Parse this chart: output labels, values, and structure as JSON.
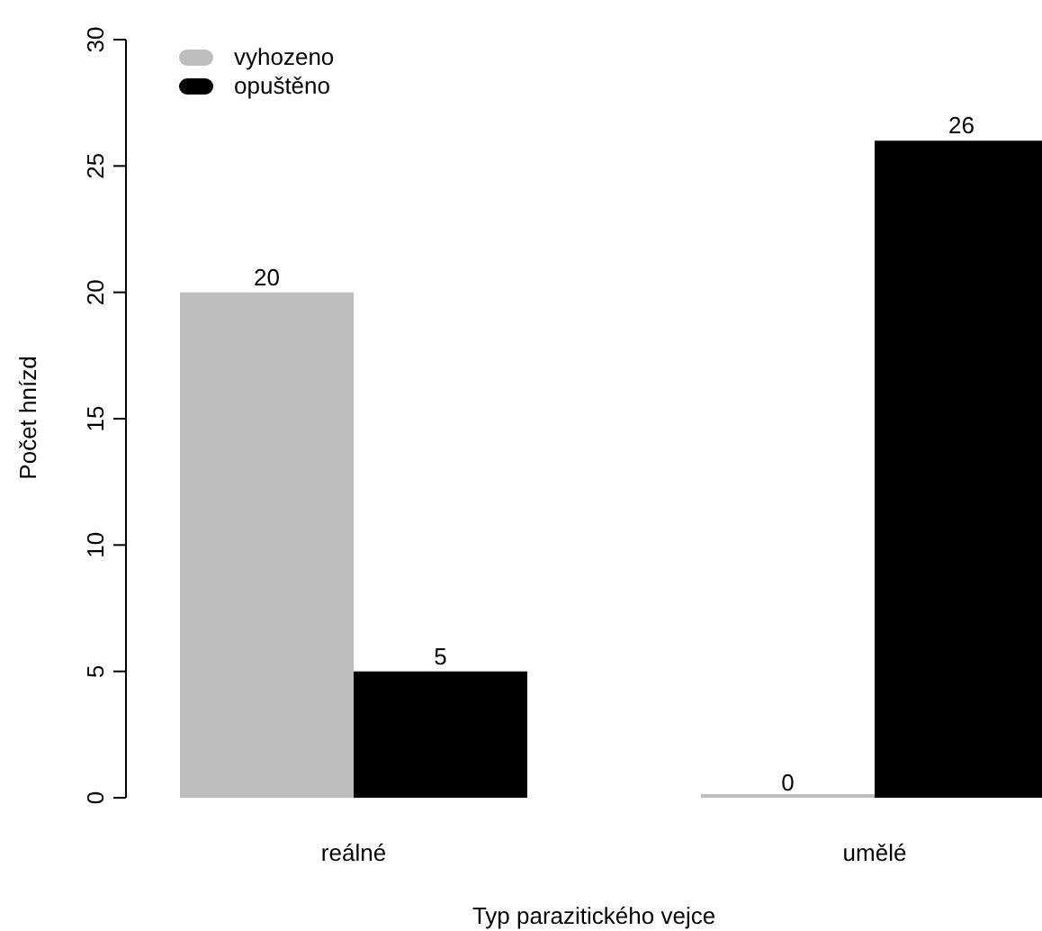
{
  "chart_data": {
    "type": "bar",
    "xlabel": "Typ parazitického vejce",
    "ylabel": "Počet hnízd",
    "categories": [
      "reálné",
      "umělé"
    ],
    "series": [
      {
        "name": "vyhozeno",
        "color": "#bebebe",
        "values": [
          20,
          0
        ]
      },
      {
        "name": "opuštěno",
        "color": "#000000",
        "values": [
          5,
          26
        ]
      }
    ],
    "ylim": [
      0,
      30
    ],
    "yticks": [
      0,
      5,
      10,
      15,
      20,
      25,
      30
    ],
    "data_labels": true,
    "legend": "top left",
    "grid": false
  }
}
